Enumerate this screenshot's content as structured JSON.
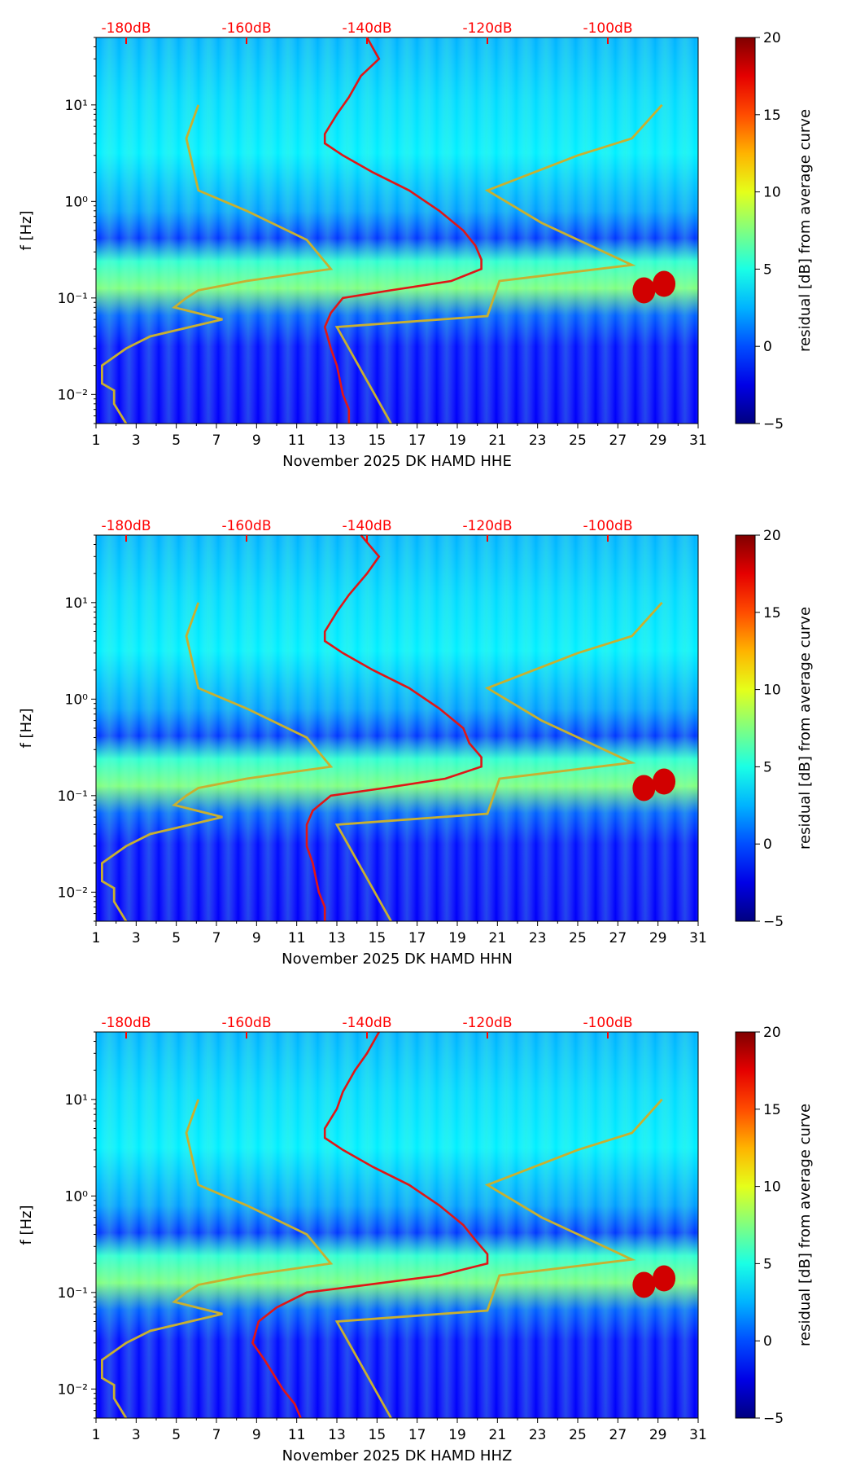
{
  "colors": {
    "psd_line": "#e01616",
    "model_line": "#c8b030",
    "db_text": "#ff0000",
    "axis": "#000000"
  },
  "colorbar": {
    "label": "residual [dB] from average curve",
    "ticks": [
      "20",
      "15",
      "10",
      "5",
      "0",
      "−5"
    ],
    "range": [
      -5,
      20
    ],
    "colormap": "jet"
  },
  "chart_data": [
    {
      "type": "heatmap",
      "title": "",
      "xlabel": "November 2025 DK HAMD  HHE",
      "ylabel": "f [Hz]",
      "channel": "HHE",
      "x_ticks": [
        "1",
        "3",
        "5",
        "7",
        "9",
        "11",
        "13",
        "15",
        "17",
        "19",
        "21",
        "23",
        "25",
        "27",
        "29",
        "31"
      ],
      "x_range": [
        1,
        31
      ],
      "y_ticks": [
        "10¹",
        "10⁰",
        "10⁻¹",
        "10⁻²"
      ],
      "y_range_hz": [
        0.005,
        50
      ],
      "db_ticks": [
        "-180dB",
        "-160dB",
        "-140dB",
        "-120dB",
        "-100dB"
      ],
      "db_range": [
        -185,
        -85
      ],
      "psd_curve": {
        "freq_hz": [
          50,
          30,
          20,
          12,
          8,
          5,
          4,
          3,
          2,
          1.3,
          0.8,
          0.5,
          0.35,
          0.25,
          0.2,
          0.15,
          0.12,
          0.1,
          0.07,
          0.05,
          0.03,
          0.02,
          0.01,
          0.007,
          0.005
        ],
        "db": [
          -140,
          -138,
          -141,
          -143,
          -145,
          -147,
          -147,
          -144,
          -139,
          -133,
          -128,
          -124,
          -122,
          -121,
          -121,
          -126,
          -136,
          -144,
          -146,
          -147,
          -146,
          -145,
          -144,
          -143,
          -143
        ]
      },
      "model_curve": "peterson"
    },
    {
      "type": "heatmap",
      "title": "",
      "xlabel": "November 2025 DK HAMD  HHN",
      "ylabel": "f [Hz]",
      "channel": "HHN",
      "x_ticks": [
        "1",
        "3",
        "5",
        "7",
        "9",
        "11",
        "13",
        "15",
        "17",
        "19",
        "21",
        "23",
        "25",
        "27",
        "29",
        "31"
      ],
      "x_range": [
        1,
        31
      ],
      "y_ticks": [
        "10¹",
        "10⁰",
        "10⁻¹",
        "10⁻²"
      ],
      "y_range_hz": [
        0.005,
        50
      ],
      "db_ticks": [
        "-180dB",
        "-160dB",
        "-140dB",
        "-120dB",
        "-100dB"
      ],
      "db_range": [
        -185,
        -85
      ],
      "psd_curve": {
        "freq_hz": [
          50,
          30,
          20,
          12,
          8,
          5,
          4,
          3,
          2,
          1.3,
          0.8,
          0.5,
          0.35,
          0.25,
          0.2,
          0.15,
          0.12,
          0.1,
          0.07,
          0.05,
          0.03,
          0.02,
          0.01,
          0.007,
          0.005
        ],
        "db": [
          -141,
          -138,
          -140,
          -143,
          -145,
          -147,
          -147,
          -144,
          -139,
          -133,
          -128,
          -124,
          -123,
          -121,
          -121,
          -127,
          -137,
          -146,
          -149,
          -150,
          -150,
          -149,
          -148,
          -147,
          -147
        ]
      },
      "model_curve": "peterson"
    },
    {
      "type": "heatmap",
      "title": "",
      "xlabel": "November 2025 DK HAMD  HHZ",
      "ylabel": "f [Hz]",
      "channel": "HHZ",
      "x_ticks": [
        "1",
        "3",
        "5",
        "7",
        "9",
        "11",
        "13",
        "15",
        "17",
        "19",
        "21",
        "23",
        "25",
        "27",
        "29",
        "31"
      ],
      "x_range": [
        1,
        31
      ],
      "y_ticks": [
        "10¹",
        "10⁰",
        "10⁻¹",
        "10⁻²"
      ],
      "y_range_hz": [
        0.005,
        50
      ],
      "db_ticks": [
        "-180dB",
        "-160dB",
        "-140dB",
        "-120dB",
        "-100dB"
      ],
      "db_range": [
        -185,
        -85
      ],
      "psd_curve": {
        "freq_hz": [
          50,
          30,
          20,
          12,
          8,
          5,
          4,
          3,
          2,
          1.3,
          0.8,
          0.5,
          0.35,
          0.25,
          0.2,
          0.15,
          0.12,
          0.1,
          0.07,
          0.05,
          0.03,
          0.02,
          0.01,
          0.007,
          0.005
        ],
        "db": [
          -138,
          -140,
          -142,
          -144,
          -145,
          -147,
          -147,
          -144,
          -139,
          -133,
          -128,
          -124,
          -122,
          -120,
          -120,
          -128,
          -140,
          -150,
          -155,
          -158,
          -159,
          -157,
          -154,
          -152,
          -151
        ]
      },
      "model_curve": "peterson"
    }
  ]
}
